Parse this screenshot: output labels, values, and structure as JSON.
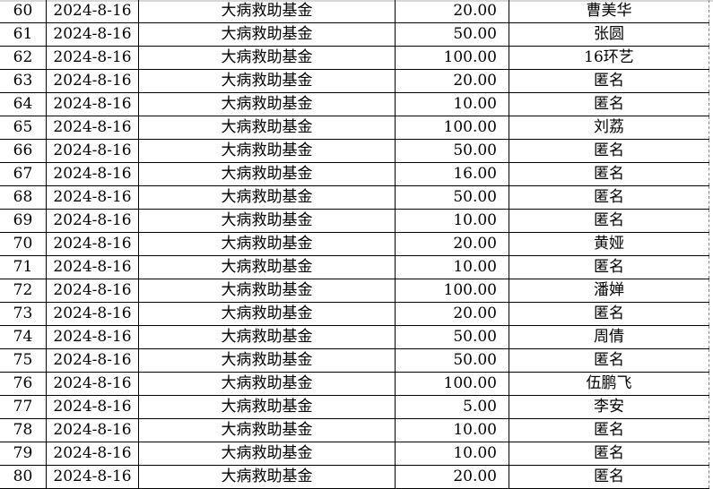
{
  "rows": [
    {
      "no": "60",
      "date": "2024-8-16",
      "fund": "大病救助基金",
      "amount": "20.00",
      "name": "曹美华"
    },
    {
      "no": "61",
      "date": "2024-8-16",
      "fund": "大病救助基金",
      "amount": "50.00",
      "name": "张圆"
    },
    {
      "no": "62",
      "date": "2024-8-16",
      "fund": "大病救助基金",
      "amount": "100.00",
      "name": "16环艺"
    },
    {
      "no": "63",
      "date": "2024-8-16",
      "fund": "大病救助基金",
      "amount": "20.00",
      "name": "匿名"
    },
    {
      "no": "64",
      "date": "2024-8-16",
      "fund": "大病救助基金",
      "amount": "10.00",
      "name": "匿名"
    },
    {
      "no": "65",
      "date": "2024-8-16",
      "fund": "大病救助基金",
      "amount": "100.00",
      "name": "刘荔"
    },
    {
      "no": "66",
      "date": "2024-8-16",
      "fund": "大病救助基金",
      "amount": "50.00",
      "name": "匿名"
    },
    {
      "no": "67",
      "date": "2024-8-16",
      "fund": "大病救助基金",
      "amount": "16.00",
      "name": "匿名"
    },
    {
      "no": "68",
      "date": "2024-8-16",
      "fund": "大病救助基金",
      "amount": "50.00",
      "name": "匿名"
    },
    {
      "no": "69",
      "date": "2024-8-16",
      "fund": "大病救助基金",
      "amount": "10.00",
      "name": "匿名"
    },
    {
      "no": "70",
      "date": "2024-8-16",
      "fund": "大病救助基金",
      "amount": "20.00",
      "name": "黄娅"
    },
    {
      "no": "71",
      "date": "2024-8-16",
      "fund": "大病救助基金",
      "amount": "10.00",
      "name": "匿名"
    },
    {
      "no": "72",
      "date": "2024-8-16",
      "fund": "大病救助基金",
      "amount": "100.00",
      "name": "潘婵"
    },
    {
      "no": "73",
      "date": "2024-8-16",
      "fund": "大病救助基金",
      "amount": "20.00",
      "name": "匿名"
    },
    {
      "no": "74",
      "date": "2024-8-16",
      "fund": "大病救助基金",
      "amount": "50.00",
      "name": "周倩"
    },
    {
      "no": "75",
      "date": "2024-8-16",
      "fund": "大病救助基金",
      "amount": "50.00",
      "name": "匿名"
    },
    {
      "no": "76",
      "date": "2024-8-16",
      "fund": "大病救助基金",
      "amount": "100.00",
      "name": "伍鹏飞"
    },
    {
      "no": "77",
      "date": "2024-8-16",
      "fund": "大病救助基金",
      "amount": "5.00",
      "name": "李安"
    },
    {
      "no": "78",
      "date": "2024-8-16",
      "fund": "大病救助基金",
      "amount": "10.00",
      "name": "匿名"
    },
    {
      "no": "79",
      "date": "2024-8-16",
      "fund": "大病救助基金",
      "amount": "10.00",
      "name": "匿名"
    },
    {
      "no": "80",
      "date": "2024-8-16",
      "fund": "大病救助基金",
      "amount": "20.00",
      "name": "匿名"
    }
  ]
}
